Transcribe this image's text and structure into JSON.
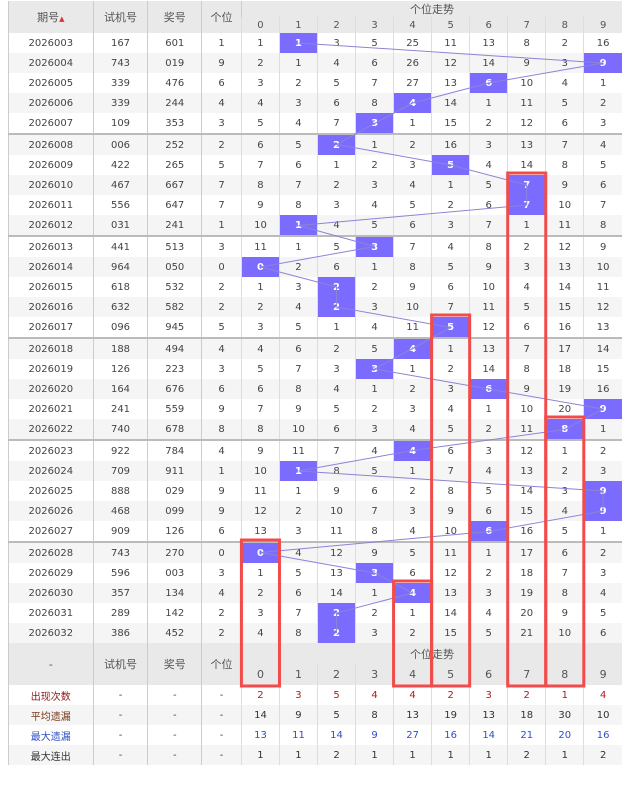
{
  "header": {
    "issue": "期号",
    "test": "试机号",
    "prize": "奖号",
    "unit": "个位",
    "trend": "个位走势",
    "digits": [
      "0",
      "1",
      "2",
      "3",
      "4",
      "5",
      "6",
      "7",
      "8",
      "9"
    ],
    "sort_icon": "sort-arrows-icon"
  },
  "rows": [
    {
      "issue": "2026003",
      "test": "167",
      "prize": "601",
      "unit": "1",
      "miss": [
        "1",
        "1",
        "3",
        "5",
        "25",
        "11",
        "13",
        "8",
        "2",
        "16"
      ]
    },
    {
      "issue": "2026004",
      "test": "743",
      "prize": "019",
      "unit": "9",
      "miss": [
        "2",
        "1",
        "4",
        "6",
        "26",
        "12",
        "14",
        "9",
        "3",
        "9"
      ]
    },
    {
      "issue": "2026005",
      "test": "339",
      "prize": "476",
      "unit": "6",
      "miss": [
        "3",
        "2",
        "5",
        "7",
        "27",
        "13",
        "6",
        "10",
        "4",
        "1"
      ]
    },
    {
      "issue": "2026006",
      "test": "339",
      "prize": "244",
      "unit": "4",
      "miss": [
        "4",
        "3",
        "6",
        "8",
        "4",
        "14",
        "1",
        "11",
        "5",
        "2"
      ]
    },
    {
      "issue": "2026007",
      "test": "109",
      "prize": "353",
      "unit": "3",
      "miss": [
        "5",
        "4",
        "7",
        "3",
        "1",
        "15",
        "2",
        "12",
        "6",
        "3"
      ]
    },
    {
      "issue": "2026008",
      "test": "006",
      "prize": "252",
      "unit": "2",
      "miss": [
        "6",
        "5",
        "2",
        "1",
        "2",
        "16",
        "3",
        "13",
        "7",
        "4"
      ]
    },
    {
      "issue": "2026009",
      "test": "422",
      "prize": "265",
      "unit": "5",
      "miss": [
        "7",
        "6",
        "1",
        "2",
        "3",
        "5",
        "4",
        "14",
        "8",
        "5"
      ]
    },
    {
      "issue": "2026010",
      "test": "467",
      "prize": "667",
      "unit": "7",
      "miss": [
        "8",
        "7",
        "2",
        "3",
        "4",
        "1",
        "5",
        "7",
        "9",
        "6"
      ]
    },
    {
      "issue": "2026011",
      "test": "556",
      "prize": "647",
      "unit": "7",
      "miss": [
        "9",
        "8",
        "3",
        "4",
        "5",
        "2",
        "6",
        "7",
        "10",
        "7"
      ]
    },
    {
      "issue": "2026012",
      "test": "031",
      "prize": "241",
      "unit": "1",
      "miss": [
        "10",
        "1",
        "4",
        "5",
        "6",
        "3",
        "7",
        "1",
        "11",
        "8"
      ]
    },
    {
      "issue": "2026013",
      "test": "441",
      "prize": "513",
      "unit": "3",
      "miss": [
        "11",
        "1",
        "5",
        "3",
        "7",
        "4",
        "8",
        "2",
        "12",
        "9"
      ]
    },
    {
      "issue": "2026014",
      "test": "964",
      "prize": "050",
      "unit": "0",
      "miss": [
        "0",
        "2",
        "6",
        "1",
        "8",
        "5",
        "9",
        "3",
        "13",
        "10"
      ]
    },
    {
      "issue": "2026015",
      "test": "618",
      "prize": "532",
      "unit": "2",
      "miss": [
        "1",
        "3",
        "2",
        "2",
        "9",
        "6",
        "10",
        "4",
        "14",
        "11"
      ]
    },
    {
      "issue": "2026016",
      "test": "632",
      "prize": "582",
      "unit": "2",
      "miss": [
        "2",
        "4",
        "2",
        "3",
        "10",
        "7",
        "11",
        "5",
        "15",
        "12"
      ]
    },
    {
      "issue": "2026017",
      "test": "096",
      "prize": "945",
      "unit": "5",
      "miss": [
        "3",
        "5",
        "1",
        "4",
        "11",
        "5",
        "12",
        "6",
        "16",
        "13"
      ]
    },
    {
      "issue": "2026018",
      "test": "188",
      "prize": "494",
      "unit": "4",
      "miss": [
        "4",
        "6",
        "2",
        "5",
        "4",
        "1",
        "13",
        "7",
        "17",
        "14"
      ]
    },
    {
      "issue": "2026019",
      "test": "126",
      "prize": "223",
      "unit": "3",
      "miss": [
        "5",
        "7",
        "3",
        "3",
        "1",
        "2",
        "14",
        "8",
        "18",
        "15"
      ]
    },
    {
      "issue": "2026020",
      "test": "164",
      "prize": "676",
      "unit": "6",
      "miss": [
        "6",
        "8",
        "4",
        "1",
        "2",
        "3",
        "6",
        "9",
        "19",
        "16"
      ]
    },
    {
      "issue": "2026021",
      "test": "241",
      "prize": "559",
      "unit": "9",
      "miss": [
        "7",
        "9",
        "5",
        "2",
        "3",
        "4",
        "1",
        "10",
        "20",
        "9"
      ]
    },
    {
      "issue": "2026022",
      "test": "740",
      "prize": "678",
      "unit": "8",
      "miss": [
        "8",
        "10",
        "6",
        "3",
        "4",
        "5",
        "2",
        "11",
        "8",
        "1"
      ]
    },
    {
      "issue": "2026023",
      "test": "922",
      "prize": "784",
      "unit": "4",
      "miss": [
        "9",
        "11",
        "7",
        "4",
        "4",
        "6",
        "3",
        "12",
        "1",
        "2"
      ]
    },
    {
      "issue": "2026024",
      "test": "709",
      "prize": "911",
      "unit": "1",
      "miss": [
        "10",
        "1",
        "8",
        "5",
        "1",
        "7",
        "4",
        "13",
        "2",
        "3"
      ]
    },
    {
      "issue": "2026025",
      "test": "888",
      "prize": "029",
      "unit": "9",
      "miss": [
        "11",
        "1",
        "9",
        "6",
        "2",
        "8",
        "5",
        "14",
        "3",
        "9"
      ]
    },
    {
      "issue": "2026026",
      "test": "468",
      "prize": "099",
      "unit": "9",
      "miss": [
        "12",
        "2",
        "10",
        "7",
        "3",
        "9",
        "6",
        "15",
        "4",
        "9"
      ]
    },
    {
      "issue": "2026027",
      "test": "909",
      "prize": "126",
      "unit": "6",
      "miss": [
        "13",
        "3",
        "11",
        "8",
        "4",
        "10",
        "6",
        "16",
        "5",
        "1"
      ]
    },
    {
      "issue": "2026028",
      "test": "743",
      "prize": "270",
      "unit": "0",
      "miss": [
        "0",
        "4",
        "12",
        "9",
        "5",
        "11",
        "1",
        "17",
        "6",
        "2"
      ]
    },
    {
      "issue": "2026029",
      "test": "596",
      "prize": "003",
      "unit": "3",
      "miss": [
        "1",
        "5",
        "13",
        "3",
        "6",
        "12",
        "2",
        "18",
        "7",
        "3"
      ]
    },
    {
      "issue": "2026030",
      "test": "357",
      "prize": "134",
      "unit": "4",
      "miss": [
        "2",
        "6",
        "14",
        "1",
        "4",
        "13",
        "3",
        "19",
        "8",
        "4"
      ]
    },
    {
      "issue": "2026031",
      "test": "289",
      "prize": "142",
      "unit": "2",
      "miss": [
        "3",
        "7",
        "2",
        "2",
        "1",
        "14",
        "4",
        "20",
        "9",
        "5"
      ]
    },
    {
      "issue": "2026032",
      "test": "386",
      "prize": "452",
      "unit": "2",
      "miss": [
        "4",
        "8",
        "2",
        "3",
        "2",
        "15",
        "5",
        "21",
        "10",
        "6"
      ]
    }
  ],
  "footer_header": {
    "issue": "-",
    "test": "试机号",
    "prize": "奖号",
    "unit": "个位",
    "trend": "个位走势"
  },
  "stats": [
    {
      "label": "出现次数",
      "cls": "c-red",
      "vcls": "v-red",
      "cells": [
        "-",
        "-",
        "-"
      ],
      "values": [
        "2",
        "3",
        "5",
        "4",
        "4",
        "2",
        "3",
        "2",
        "1",
        "4"
      ]
    },
    {
      "label": "平均遗漏",
      "cls": "c-brown",
      "vcls": "c-dark",
      "cells": [
        "-",
        "-",
        "-"
      ],
      "values": [
        "14",
        "9",
        "5",
        "8",
        "13",
        "19",
        "13",
        "18",
        "30",
        "10"
      ]
    },
    {
      "label": "最大遗漏",
      "cls": "c-blue",
      "vcls": "v-blue",
      "cells": [
        "-",
        "-",
        "-"
      ],
      "values": [
        "13",
        "11",
        "14",
        "9",
        "27",
        "16",
        "14",
        "21",
        "20",
        "16"
      ]
    },
    {
      "label": "最大连出",
      "cls": "c-dark",
      "vcls": "c-dark",
      "cells": [
        "-",
        "-",
        "-"
      ],
      "values": [
        "1",
        "1",
        "2",
        "1",
        "1",
        "1",
        "1",
        "2",
        "1",
        "2"
      ]
    }
  ],
  "streak_boxes": [
    {
      "digit": 7,
      "from": "2026010"
    },
    {
      "digit": 5,
      "from": "2026017"
    },
    {
      "digit": 8,
      "from": "2026022"
    },
    {
      "digit": 0,
      "from": "2026028"
    },
    {
      "digit": 4,
      "from": "2026030"
    }
  ],
  "colors": {
    "hit": "#7b6cff",
    "line": "#8c84d6",
    "box": "#f24b4b",
    "header_bg": "#e9e9e9"
  }
}
